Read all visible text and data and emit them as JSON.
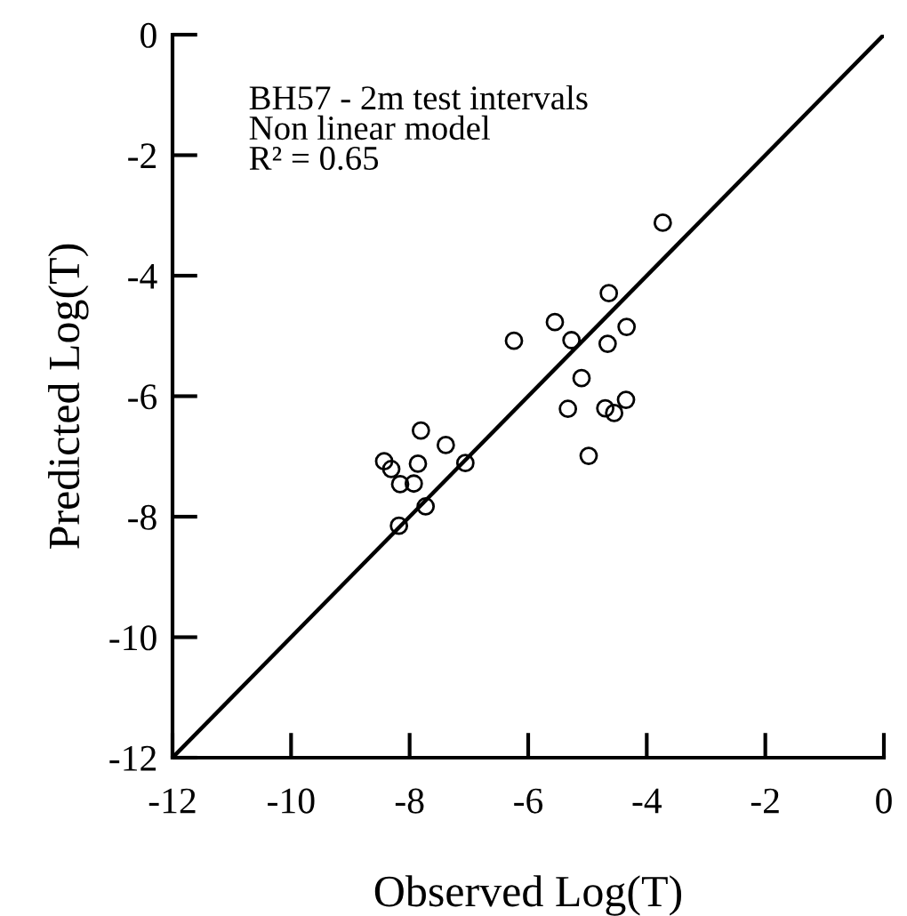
{
  "chart_data": {
    "type": "scatter",
    "xlabel": "Observed Log(T)",
    "ylabel": "Predicted Log(T)",
    "annotations": [
      "BH57 - 2m test intervals",
      "Non linear model",
      "R² = 0.65"
    ],
    "xlim": [
      -12,
      0
    ],
    "ylim": [
      -12,
      0
    ],
    "xticks": [
      -12,
      -10,
      -8,
      -6,
      -4,
      -2,
      0
    ],
    "yticks": [
      -12,
      -10,
      -8,
      -6,
      -4,
      -2,
      0
    ],
    "grid": false,
    "legend": false,
    "series": [
      {
        "marker": "circle",
        "color": "#000000",
        "x": [
          -3.73,
          -4.64,
          -4.34,
          -5.55,
          -5.27,
          -6.24,
          -4.66,
          -5.1,
          -5.33,
          -4.7,
          -4.55,
          -4.35,
          -4.98,
          -7.81,
          -7.39,
          -7.06,
          -7.86,
          -8.43,
          -8.31,
          -8.16,
          -7.93,
          -7.73,
          -8.18
        ],
        "values": [
          -3.12,
          -4.29,
          -4.85,
          -4.77,
          -5.07,
          -5.08,
          -5.13,
          -5.7,
          -6.21,
          -6.2,
          -6.28,
          -6.06,
          -6.99,
          -6.57,
          -6.81,
          -7.11,
          -7.12,
          -7.08,
          -7.21,
          -7.46,
          -7.45,
          -7.83,
          -8.15
        ]
      },
      {
        "type": "line",
        "color": "#000000",
        "line_style": "solid",
        "x": [
          -12,
          0
        ],
        "values": [
          -12,
          0
        ]
      }
    ]
  }
}
